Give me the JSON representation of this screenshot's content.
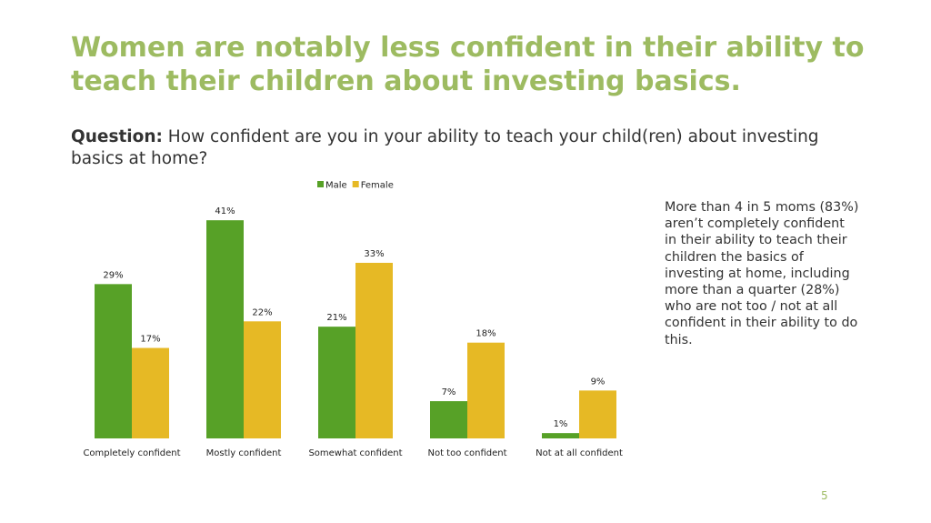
{
  "slide": {
    "title": "Women are notably less confident in their ability to teach their children about investing basics.",
    "question_label": "Question:",
    "question_text": " How confident are you in your ability to teach your child(ren) about investing basics at home?",
    "sidenote": "More than 4 in 5 moms (83%) aren’t completely confident in their ability to teach their children the basics of investing at home, including more than a quarter (28%) who are not too / not at all confident in their ability to do this.",
    "page_number": "5"
  },
  "colors": {
    "title": "#9dbb61",
    "male": "#57a127",
    "female": "#e6b925"
  },
  "chart_data": {
    "type": "bar",
    "categories": [
      "Completely confident",
      "Mostly confident",
      "Somewhat confident",
      "Not too confident",
      "Not at all confident"
    ],
    "series": [
      {
        "name": "Male",
        "values": [
          29,
          41,
          21,
          7,
          1
        ],
        "labels": [
          "29%",
          "41%",
          "21%",
          "7%",
          "1%"
        ]
      },
      {
        "name": "Female",
        "values": [
          17,
          22,
          33,
          18,
          9
        ],
        "labels": [
          "17%",
          "22%",
          "33%",
          "18%",
          "9%"
        ]
      }
    ],
    "unit": "%",
    "legend_position": "top-center",
    "grid": false,
    "ylim": [
      0,
      41
    ]
  }
}
